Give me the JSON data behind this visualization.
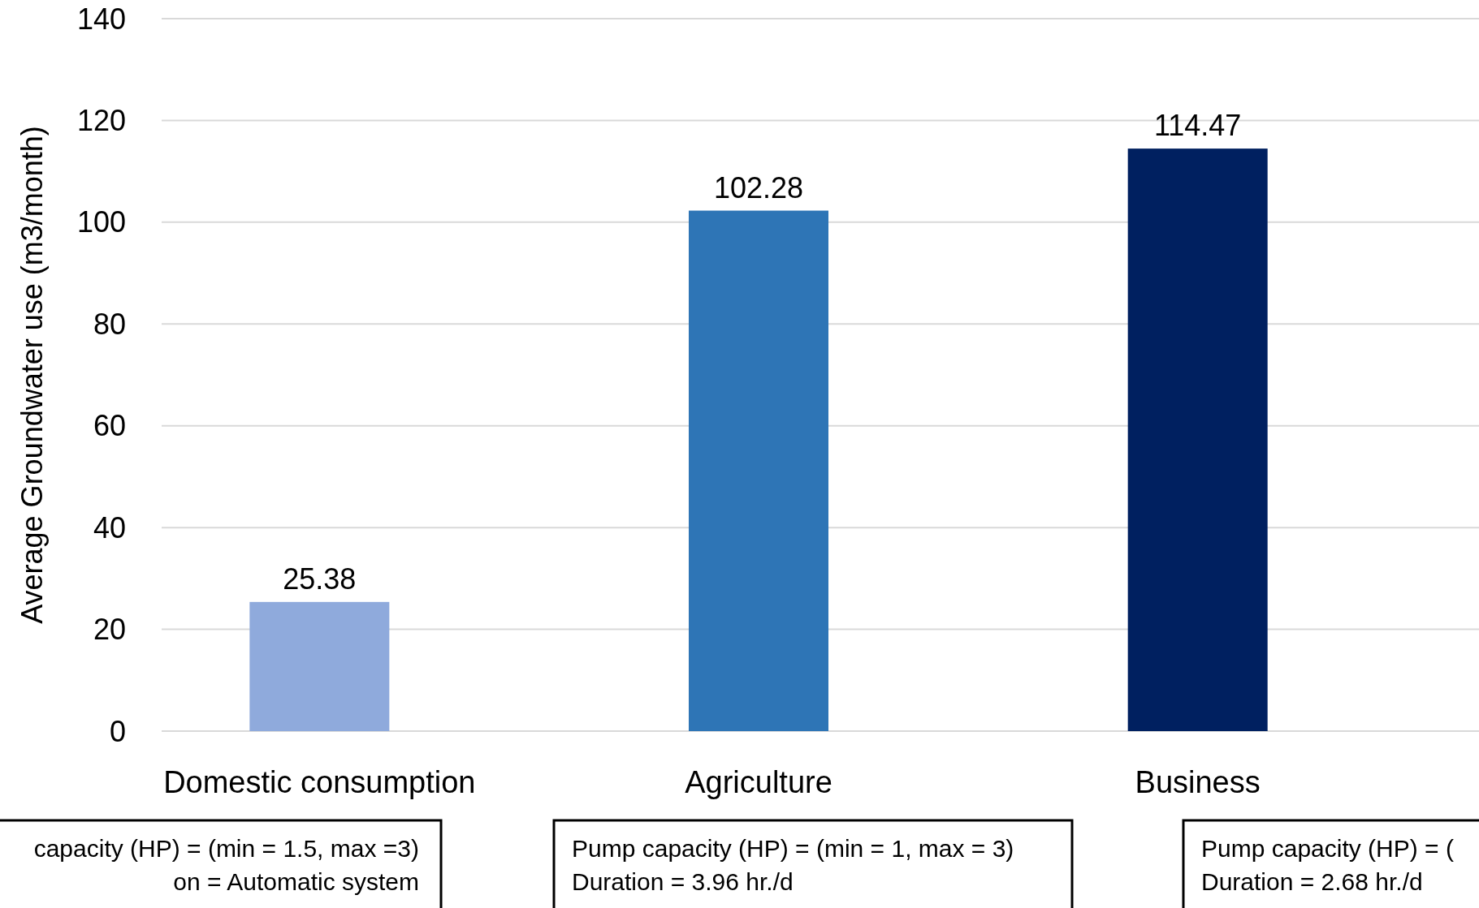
{
  "chart_data": {
    "type": "bar",
    "ylabel": "Average Groundwater use (m3/month)",
    "categories": [
      "Domestic consumption",
      "Agriculture",
      "Business"
    ],
    "values": [
      25.38,
      102.28,
      114.47
    ],
    "colors": [
      "#8faadc",
      "#2e75b6",
      "#002060"
    ],
    "ylim": [
      0,
      140
    ],
    "yticks": [
      0,
      20,
      40,
      60,
      80,
      100,
      120,
      140
    ],
    "grid": "y",
    "data_labels": true,
    "annotations": [
      "capacity (HP) = (min = 1.5, max =3)",
      "on = Automatic system",
      "Pump capacity (HP) = (min = 1, max = 3)",
      "Duration = 3.96 hr./d",
      "Pump capacity (HP) = (",
      "Duration = 2.68 hr./d"
    ]
  }
}
